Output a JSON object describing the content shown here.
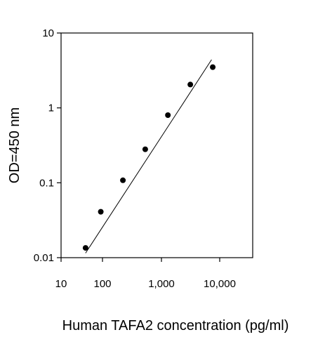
{
  "chart_data": {
    "type": "scatter",
    "xlabel": "Human TAFA2 concentration (pg/ml)",
    "ylabel": "OD=450 nm",
    "x_scale": "log",
    "y_scale": "log",
    "xlim": [
      10,
      30000
    ],
    "ylim": [
      0.01,
      10
    ],
    "x_ticks": [
      10,
      100,
      1000,
      10000
    ],
    "x_tick_labels": [
      "10",
      "100",
      "1,000",
      "10,000"
    ],
    "y_ticks": [
      0.01,
      0.1,
      1,
      10
    ],
    "y_tick_labels": [
      "0.01",
      "0.1",
      "1",
      "10"
    ],
    "grid": false,
    "series": [
      {
        "points": [
          {
            "x": 39,
            "y": 0.0135
          },
          {
            "x": 91,
            "y": 0.041
          },
          {
            "x": 222,
            "y": 0.108
          },
          {
            "x": 531,
            "y": 0.28
          },
          {
            "x": 1290,
            "y": 0.8
          },
          {
            "x": 3130,
            "y": 2.05
          },
          {
            "x": 7590,
            "y": 3.5
          }
        ]
      }
    ],
    "fit_line": [
      {
        "x": 39,
        "y": 0.0115
      },
      {
        "x": 7250,
        "y": 4.4
      }
    ]
  }
}
